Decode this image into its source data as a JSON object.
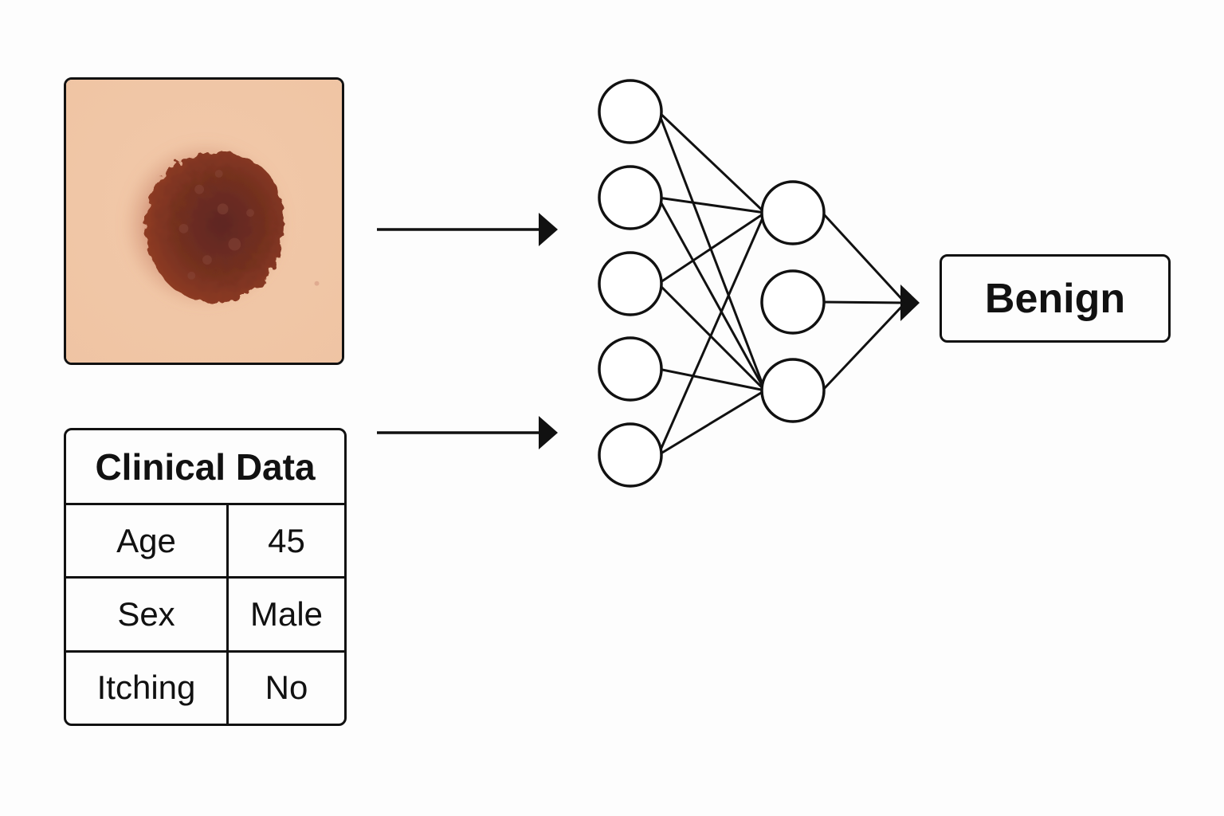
{
  "clinical_data": {
    "title": "Clinical Data",
    "rows": [
      {
        "label": "Age",
        "value": "45"
      },
      {
        "label": "Sex",
        "value": "Male"
      },
      {
        "label": "Itching",
        "value": "No"
      }
    ]
  },
  "output": {
    "label": "Benign"
  },
  "network": {
    "layers": [
      5,
      3
    ]
  },
  "icons": {
    "lesion_image": "skin-lesion-photo",
    "arrow": "arrow-right-icon"
  },
  "colors": {
    "line": "#111111",
    "skin": "#f0c6a6",
    "lesion": "#6a2a20"
  }
}
